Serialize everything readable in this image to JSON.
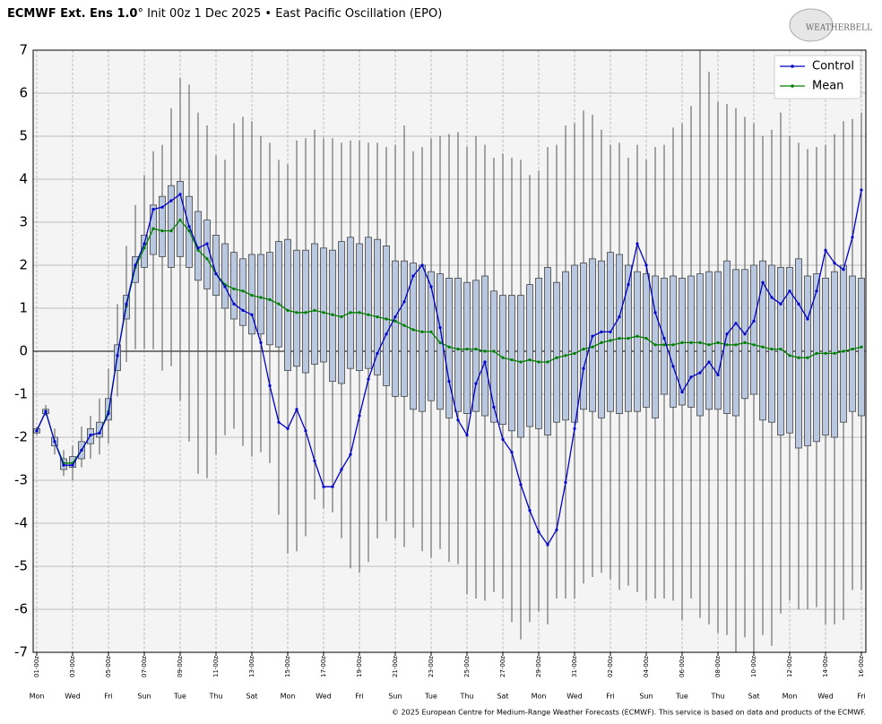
{
  "header": {
    "title_bold": "ECMWF Ext. Ens 1.0",
    "title_rest": "° Init 00z 1 Dec 2025 • East Pacific Oscillation (EPO)",
    "logo": "WEATHERBELL"
  },
  "footer": "© 2025 European Centre for Medium-Range Weather Forecasts (ECMWF). This service is based on data and products of the ECMWF.",
  "chart_data": {
    "type": "boxplot",
    "legend": "upper right",
    "grid": true,
    "xlim": [
      -4.8,
      1110
    ],
    "ylim": [
      -7,
      7
    ],
    "yticks": [
      7,
      6,
      5,
      4,
      3,
      2,
      1,
      0,
      -1,
      -2,
      -3,
      -4,
      -5,
      -6,
      -7
    ],
    "xticks": [
      {
        "value": 0,
        "label": "01-00z"
      },
      {
        "value": 48,
        "label": "03-00z"
      },
      {
        "value": 96,
        "label": "05-00z"
      },
      {
        "value": 144,
        "label": "07-00z"
      },
      {
        "value": 192,
        "label": "09-00z"
      },
      {
        "value": 240,
        "label": "11-00z"
      },
      {
        "value": 288,
        "label": "13-00z"
      },
      {
        "value": 336,
        "label": "15-00z"
      },
      {
        "value": 384,
        "label": "17-00z"
      },
      {
        "value": 432,
        "label": "19-00z"
      },
      {
        "value": 480,
        "label": "21-00z"
      },
      {
        "value": 528,
        "label": "23-00z"
      },
      {
        "value": 576,
        "label": "25-00z"
      },
      {
        "value": 624,
        "label": "27-00z"
      },
      {
        "value": 672,
        "label": "29-00z"
      },
      {
        "value": 720,
        "label": "31-00z"
      },
      {
        "value": 768,
        "label": "02-00z"
      },
      {
        "value": 816,
        "label": "04-00z"
      },
      {
        "value": 864,
        "label": "06-00z"
      },
      {
        "value": 912,
        "label": "08-00z"
      },
      {
        "value": 960,
        "label": "10-00z"
      },
      {
        "value": 1008,
        "label": "12-00z"
      },
      {
        "value": 1056,
        "label": "14-00z"
      },
      {
        "value": 1104,
        "label": "16-00z"
      }
    ],
    "xtick_days": [
      "Mon",
      "Wed",
      "Fri",
      "Sun",
      "Tue",
      "Thu",
      "Sat",
      "Mon",
      "Wed",
      "Fri",
      "Sun",
      "Tue",
      "Thu",
      "Sat",
      "Mon",
      "Wed",
      "Fri",
      "Sun",
      "Tue",
      "Thu",
      "Sat",
      "Mon",
      "Wed",
      "Fri"
    ],
    "x": [
      0,
      12,
      24,
      36,
      48,
      60,
      72,
      84,
      96,
      108,
      120,
      132,
      144,
      156,
      168,
      180,
      192,
      204,
      216,
      228,
      240,
      252,
      264,
      276,
      288,
      300,
      312,
      324,
      336,
      348,
      360,
      372,
      384,
      396,
      408,
      420,
      432,
      444,
      456,
      468,
      480,
      492,
      504,
      516,
      528,
      540,
      552,
      564,
      576,
      588,
      600,
      612,
      624,
      636,
      648,
      660,
      672,
      684,
      696,
      708,
      720,
      732,
      744,
      756,
      768,
      780,
      792,
      804,
      816,
      828,
      840,
      852,
      864,
      876,
      888,
      900,
      912,
      924,
      936,
      948,
      960,
      972,
      984,
      996,
      1008,
      1020,
      1032,
      1044,
      1056,
      1068,
      1080,
      1092,
      1104
    ],
    "box": {
      "color": "#b9c8de",
      "q3": [
        -1.8,
        -1.35,
        -2.0,
        -2.5,
        -2.45,
        -2.1,
        -1.8,
        -1.65,
        -1.1,
        0.15,
        1.3,
        2.2,
        2.7,
        3.4,
        3.6,
        3.85,
        3.95,
        3.6,
        3.25,
        3.05,
        2.7,
        2.5,
        2.3,
        2.15,
        2.25,
        2.25,
        2.3,
        2.55,
        2.6,
        2.35,
        2.35,
        2.5,
        2.4,
        2.35,
        2.55,
        2.65,
        2.5,
        2.65,
        2.6,
        2.45,
        2.1,
        2.1,
        2.05,
        2.0,
        1.85,
        1.8,
        1.7,
        1.7,
        1.6,
        1.65,
        1.75,
        1.4,
        1.3,
        1.3,
        1.3,
        1.55,
        1.7,
        1.95,
        1.6,
        1.85,
        2.0,
        2.05,
        2.15,
        2.1,
        2.3,
        2.25,
        2.0,
        1.85,
        1.8,
        1.75,
        1.7,
        1.75,
        1.7,
        1.75,
        1.8,
        1.85,
        1.85,
        2.1,
        1.9,
        1.9,
        2.0,
        2.1,
        2.0,
        1.95,
        1.95,
        2.15,
        1.75,
        1.8,
        1.7,
        1.85,
        2.0,
        1.75,
        1.7
      ],
      "q1": [
        -1.9,
        -1.45,
        -2.2,
        -2.75,
        -2.7,
        -2.5,
        -2.15,
        -2.0,
        -1.6,
        -0.45,
        0.75,
        1.6,
        1.95,
        2.25,
        2.2,
        1.95,
        2.2,
        1.95,
        1.65,
        1.45,
        1.3,
        1.0,
        0.75,
        0.6,
        0.4,
        0.4,
        0.15,
        0.1,
        -0.45,
        -0.35,
        -0.5,
        -0.3,
        -0.25,
        -0.7,
        -0.75,
        -0.4,
        -0.45,
        -0.4,
        -0.55,
        -0.8,
        -1.05,
        -1.05,
        -1.35,
        -1.4,
        -1.15,
        -1.35,
        -1.55,
        -1.4,
        -1.45,
        -1.4,
        -1.5,
        -1.65,
        -1.7,
        -1.85,
        -2.0,
        -1.75,
        -1.8,
        -1.95,
        -1.65,
        -1.6,
        -1.65,
        -1.35,
        -1.4,
        -1.55,
        -1.4,
        -1.45,
        -1.4,
        -1.4,
        -1.3,
        -1.55,
        -1.0,
        -1.3,
        -1.25,
        -1.3,
        -1.5,
        -1.35,
        -1.35,
        -1.45,
        -1.5,
        -1.1,
        -1.0,
        -1.6,
        -1.65,
        -1.95,
        -1.9,
        -2.25,
        -2.2,
        -2.1,
        -1.95,
        -2.0,
        -1.65,
        -1.4,
        -1.5
      ],
      "whisker_high": [
        -1.75,
        -1.25,
        -1.8,
        -2.3,
        -2.2,
        -1.75,
        -1.5,
        -1.1,
        -0.4,
        1.1,
        2.45,
        3.4,
        4.1,
        4.65,
        4.8,
        5.65,
        6.35,
        6.2,
        5.55,
        5.25,
        4.55,
        4.45,
        5.3,
        5.45,
        5.35,
        5.0,
        4.85,
        4.45,
        4.35,
        4.9,
        4.95,
        5.15,
        4.95,
        4.95,
        4.85,
        4.9,
        4.9,
        4.85,
        4.85,
        4.75,
        4.8,
        5.25,
        4.65,
        4.75,
        4.95,
        5.0,
        5.05,
        5.1,
        4.75,
        5.0,
        4.8,
        4.5,
        4.6,
        4.5,
        4.45,
        4.1,
        4.2,
        4.75,
        4.8,
        5.25,
        5.3,
        5.6,
        5.5,
        5.15,
        4.8,
        4.85,
        4.5,
        4.8,
        4.45,
        4.75,
        4.8,
        5.2,
        5.3,
        5.7,
        7.0,
        6.5,
        5.8,
        5.75,
        5.65,
        5.45,
        5.3,
        5.0,
        5.15,
        5.55,
        5.0,
        4.85,
        4.7,
        4.75,
        4.8,
        5.05,
        5.35,
        5.4,
        5.55
      ],
      "whisker_low": [
        -1.95,
        -1.5,
        -2.4,
        -2.9,
        -3.0,
        -2.7,
        -2.5,
        -2.4,
        -2.15,
        -1.05,
        -0.25,
        0.05,
        0.05,
        0.05,
        -0.45,
        -0.35,
        -1.15,
        -2.1,
        -2.85,
        -2.95,
        -2.4,
        -1.95,
        -1.8,
        -2.2,
        -2.45,
        -2.35,
        -2.6,
        -3.8,
        -4.7,
        -4.65,
        -4.3,
        -3.45,
        -3.65,
        -3.75,
        -4.35,
        -5.05,
        -5.15,
        -4.9,
        -4.35,
        -3.95,
        -4.35,
        -4.55,
        -4.1,
        -4.65,
        -4.8,
        -4.6,
        -4.9,
        -4.95,
        -5.65,
        -5.75,
        -5.8,
        -5.6,
        -5.75,
        -6.3,
        -6.7,
        -6.3,
        -6.05,
        -6.35,
        -5.75,
        -5.75,
        -5.75,
        -5.4,
        -5.25,
        -5.15,
        -5.3,
        -5.55,
        -5.45,
        -5.6,
        -5.8,
        -5.75,
        -5.75,
        -5.8,
        -6.25,
        -5.75,
        -6.2,
        -6.35,
        -6.55,
        -6.6,
        -7.0,
        -6.65,
        -7.0,
        -6.6,
        -6.85,
        -6.1,
        -5.8,
        -6.0,
        -6.0,
        -5.95,
        -6.35,
        -6.35,
        -6.25,
        -5.55,
        -5.55
      ]
    },
    "series": [
      {
        "name": "Control",
        "color": "#0000cc",
        "values": [
          -1.85,
          -1.4,
          -2.1,
          -2.65,
          -2.65,
          -2.3,
          -1.95,
          -1.9,
          -1.45,
          -0.1,
          1.1,
          2.0,
          2.5,
          3.3,
          3.35,
          3.5,
          3.65,
          2.9,
          2.4,
          2.5,
          1.8,
          1.5,
          1.1,
          0.95,
          0.85,
          0.2,
          -0.8,
          -1.65,
          -1.8,
          -1.35,
          -1.85,
          -2.55,
          -3.15,
          -3.15,
          -2.75,
          -2.4,
          -1.5,
          -0.65,
          -0.05,
          0.4,
          0.8,
          1.15,
          1.75,
          2.0,
          1.5,
          0.55,
          -0.7,
          -1.6,
          -1.95,
          -0.75,
          -0.25,
          -1.3,
          -2.05,
          -2.35,
          -3.1,
          -3.7,
          -4.2,
          -4.5,
          -4.15,
          -3.05,
          -1.8,
          -0.4,
          0.35,
          0.45,
          0.45,
          0.8,
          1.55,
          2.5,
          2.0,
          0.9,
          0.3,
          -0.35,
          -0.95,
          -0.6,
          -0.5,
          -0.25,
          -0.55,
          0.4,
          0.65,
          0.4,
          0.7,
          1.6,
          1.25,
          1.1,
          1.4,
          1.1,
          0.75,
          1.4,
          2.35,
          2.05,
          1.9,
          2.65,
          3.75
        ]
      },
      {
        "name": "Mean",
        "color": "#008000",
        "values": [
          -1.85,
          -1.4,
          -2.1,
          -2.6,
          -2.6,
          -2.3,
          -1.95,
          -1.9,
          -1.4,
          -0.1,
          1.05,
          1.95,
          2.4,
          2.85,
          2.8,
          2.8,
          3.05,
          2.8,
          2.35,
          2.15,
          1.8,
          1.55,
          1.45,
          1.4,
          1.3,
          1.25,
          1.2,
          1.1,
          0.95,
          0.9,
          0.9,
          0.95,
          0.9,
          0.85,
          0.8,
          0.9,
          0.9,
          0.85,
          0.8,
          0.75,
          0.7,
          0.6,
          0.5,
          0.45,
          0.45,
          0.2,
          0.1,
          0.05,
          0.05,
          0.05,
          0.0,
          0.0,
          -0.15,
          -0.2,
          -0.25,
          -0.2,
          -0.25,
          -0.25,
          -0.15,
          -0.1,
          -0.05,
          0.05,
          0.1,
          0.2,
          0.25,
          0.3,
          0.3,
          0.35,
          0.3,
          0.15,
          0.15,
          0.15,
          0.2,
          0.2,
          0.2,
          0.15,
          0.2,
          0.15,
          0.15,
          0.2,
          0.15,
          0.1,
          0.05,
          0.05,
          -0.1,
          -0.15,
          -0.15,
          -0.05,
          -0.05,
          -0.05,
          0.0,
          0.05,
          0.1
        ]
      }
    ]
  }
}
